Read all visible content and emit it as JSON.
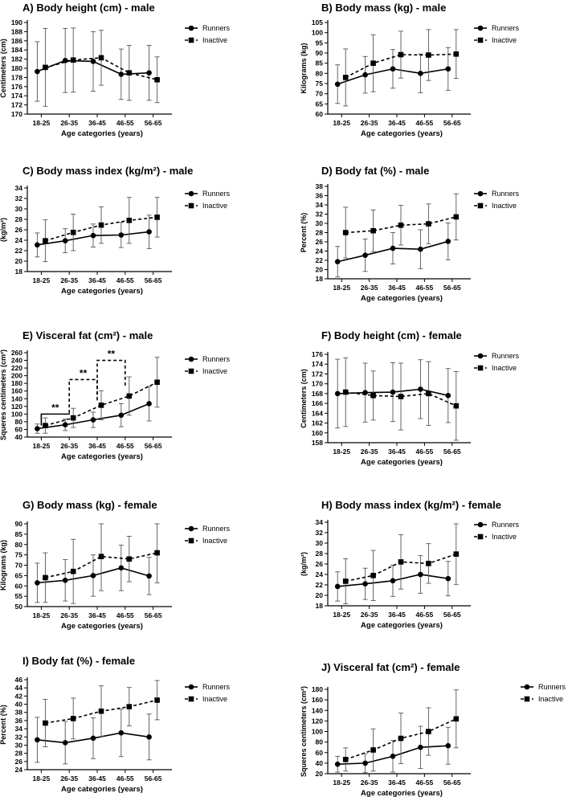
{
  "legend": {
    "runners": "Runners",
    "inactive": "Inactive"
  },
  "chart_data": [
    {
      "id": "A",
      "type": "line",
      "title": "A) Body height (cm) - male",
      "xlabel": "Age categories (years)",
      "ylabel": "Centimeters (cm)",
      "categories": [
        "18-25",
        "26-35",
        "36-45",
        "46-55",
        "56-65"
      ],
      "ylim": [
        170,
        190
      ],
      "yticks": [
        170,
        172,
        174,
        176,
        178,
        180,
        182,
        184,
        186,
        188,
        190
      ],
      "series": [
        {
          "name": "Runners",
          "values": [
            179.3,
            181.7,
            181.5,
            178.7,
            179.0
          ],
          "err": [
            6.5,
            7.0,
            6.5,
            5.5,
            6.0
          ]
        },
        {
          "name": "Inactive",
          "values": [
            180.2,
            181.8,
            182.3,
            179.0,
            177.5
          ],
          "err": [
            8.5,
            7.0,
            6.0,
            6.0,
            5.0
          ]
        }
      ]
    },
    {
      "id": "B",
      "type": "line",
      "title": "B) Body mass (kg) - male",
      "xlabel": "Age categories (years)",
      "ylabel": "Kilograms (kg)",
      "categories": [
        "18-25",
        "26-35",
        "36-45",
        "46-55",
        "56-65"
      ],
      "ylim": [
        60,
        105
      ],
      "yticks": [
        60,
        65,
        70,
        75,
        80,
        85,
        90,
        95,
        100,
        105
      ],
      "series": [
        {
          "name": "Runners",
          "values": [
            74.7,
            79.3,
            82.2,
            80.0,
            82.2
          ],
          "err": [
            9.5,
            9.0,
            9.5,
            9.5,
            10.5
          ]
        },
        {
          "name": "Inactive",
          "values": [
            78.0,
            85.0,
            89.2,
            89.0,
            89.5
          ],
          "err": [
            14.0,
            14.0,
            11.5,
            12.5,
            12.0
          ]
        }
      ]
    },
    {
      "id": "C",
      "type": "line",
      "title": "C) Body mass index (kg/m²) - male",
      "xlabel": "Age categories (years)",
      "ylabel": "(kg/m²)",
      "categories": [
        "18-25",
        "26-35",
        "36-45",
        "46-55",
        "56-65"
      ],
      "ylim": [
        18,
        34
      ],
      "yticks": [
        18,
        20,
        22,
        24,
        26,
        28,
        30,
        32,
        34
      ],
      "series": [
        {
          "name": "Runners",
          "values": [
            23.1,
            23.9,
            24.9,
            25.0,
            25.6
          ],
          "err": [
            2.3,
            2.3,
            2.2,
            2.4,
            3.2
          ]
        },
        {
          "name": "Inactive",
          "values": [
            23.9,
            25.5,
            26.9,
            27.8,
            28.4
          ],
          "err": [
            4.0,
            3.5,
            3.5,
            4.4,
            3.8
          ]
        }
      ]
    },
    {
      "id": "D",
      "type": "line",
      "title": "D) Body fat (%) - male",
      "xlabel": "Age categories (years)",
      "ylabel": "Percent (%)",
      "categories": [
        "18-25",
        "26-35",
        "36-45",
        "46-55",
        "56-65"
      ],
      "ylim": [
        18,
        38
      ],
      "yticks": [
        18,
        20,
        22,
        24,
        26,
        28,
        30,
        32,
        34,
        36,
        38
      ],
      "series": [
        {
          "name": "Runners",
          "values": [
            21.7,
            23.1,
            24.6,
            24.4,
            26.1
          ],
          "err": [
            3.3,
            3.5,
            3.4,
            4.2,
            4.0
          ]
        },
        {
          "name": "Inactive",
          "values": [
            28.0,
            28.4,
            29.6,
            29.9,
            31.4
          ],
          "err": [
            5.5,
            4.5,
            4.3,
            4.3,
            5.0
          ]
        }
      ]
    },
    {
      "id": "E",
      "type": "line",
      "title": "E) Visceral fat (cm²) - male",
      "xlabel": "Age categories (years)",
      "ylabel": "Squeres centimeters (cm²)",
      "categories": [
        "18-25",
        "26-35",
        "36-45",
        "46-55",
        "56-65"
      ],
      "ylim": [
        40,
        260
      ],
      "yticks": [
        40,
        60,
        80,
        100,
        120,
        140,
        160,
        180,
        200,
        220,
        240,
        260
      ],
      "series": [
        {
          "name": "Runners",
          "values": [
            62,
            72,
            85,
            97,
            127
          ],
          "err": [
            12,
            15,
            20,
            30,
            45
          ]
        },
        {
          "name": "Inactive",
          "values": [
            70,
            90,
            123,
            147,
            183
          ],
          "err": [
            20,
            25,
            38,
            50,
            65
          ]
        }
      ],
      "annotations": [
        {
          "label": "**",
          "from": 0,
          "to": 1,
          "y": 100,
          "style": "solid"
        },
        {
          "label": "**",
          "from": 1,
          "to": 2,
          "y": 190,
          "style": "dashed"
        },
        {
          "label": "**",
          "from": 2,
          "to": 3,
          "y": 240,
          "style": "dashed"
        }
      ]
    },
    {
      "id": "F",
      "type": "line",
      "title": "F) Body height (cm) - female",
      "xlabel": "Age categories (years)",
      "ylabel": "Centimeters (cm)",
      "categories": [
        "18-25",
        "26-35",
        "36-45",
        "46-55",
        "56-65"
      ],
      "ylim": [
        158,
        176
      ],
      "yticks": [
        158,
        160,
        162,
        164,
        166,
        168,
        170,
        172,
        174,
        176
      ],
      "series": [
        {
          "name": "Runners",
          "values": [
            168.0,
            168.2,
            168.3,
            168.9,
            167.6
          ],
          "err": [
            7.0,
            6.0,
            6.0,
            6.0,
            5.5
          ]
        },
        {
          "name": "Inactive",
          "values": [
            168.3,
            167.6,
            167.4,
            168.0,
            165.5
          ],
          "err": [
            7.0,
            5.0,
            6.8,
            6.5,
            7.0
          ]
        }
      ]
    },
    {
      "id": "G",
      "type": "line",
      "title": "G) Body mass (kg) - female",
      "xlabel": "Age categories (years)",
      "ylabel": "Kilograms (kg)",
      "categories": [
        "18-25",
        "26-35",
        "36-45",
        "46-55",
        "56-65"
      ],
      "ylim": [
        50,
        90
      ],
      "yticks": [
        50,
        55,
        60,
        65,
        70,
        75,
        80,
        85,
        90
      ],
      "series": [
        {
          "name": "Runners",
          "values": [
            61.5,
            62.7,
            65.0,
            68.7,
            64.8
          ],
          "err": [
            9.5,
            10.0,
            10.0,
            11.0,
            9.0
          ]
        },
        {
          "name": "Inactive",
          "values": [
            64.0,
            67.0,
            74.2,
            73.0,
            76.0
          ],
          "err": [
            12.0,
            15.5,
            16.5,
            11.0,
            14.5
          ]
        }
      ]
    },
    {
      "id": "H",
      "type": "line",
      "title": "H) Body mass index (kg/m²) - female",
      "xlabel": "Age categories (years)",
      "ylabel": "(kg/m²)",
      "categories": [
        "18-25",
        "26-35",
        "36-45",
        "46-55",
        "56-65"
      ],
      "ylim": [
        18,
        34
      ],
      "yticks": [
        18,
        20,
        22,
        24,
        26,
        28,
        30,
        32,
        34
      ],
      "series": [
        {
          "name": "Runners",
          "values": [
            21.7,
            22.2,
            22.8,
            24.0,
            23.2
          ],
          "err": [
            2.8,
            3.0,
            3.0,
            3.6,
            3.3
          ]
        },
        {
          "name": "Inactive",
          "values": [
            22.7,
            23.8,
            26.4,
            26.1,
            27.9
          ],
          "err": [
            4.3,
            4.8,
            5.2,
            3.8,
            5.8
          ]
        }
      ]
    },
    {
      "id": "I",
      "type": "line",
      "title": "I) Body fat (%) - female",
      "xlabel": "Age categories (years)",
      "ylabel": "Percent (%)",
      "categories": [
        "18-25",
        "26-35",
        "36-45",
        "46-55",
        "56-65"
      ],
      "ylim": [
        24,
        46
      ],
      "yticks": [
        24,
        26,
        28,
        30,
        32,
        34,
        36,
        38,
        40,
        42,
        44,
        46
      ],
      "series": [
        {
          "name": "Runners",
          "values": [
            31.3,
            30.6,
            31.7,
            33.0,
            32.0
          ],
          "err": [
            5.5,
            5.2,
            5.0,
            5.8,
            5.6
          ]
        },
        {
          "name": "Inactive",
          "values": [
            35.4,
            36.5,
            38.3,
            39.4,
            41.0
          ],
          "err": [
            5.8,
            5.0,
            6.2,
            4.7,
            4.8
          ]
        }
      ]
    },
    {
      "id": "J",
      "type": "line",
      "title": "J) Visceral fat (cm²) - female",
      "xlabel": "Age categories (years)",
      "ylabel": "Squeres centimeters (cm²)",
      "categories": [
        "18-25",
        "26-35",
        "36-45",
        "46-55",
        "56-65"
      ],
      "ylim": [
        20,
        180
      ],
      "yticks": [
        20,
        40,
        60,
        80,
        100,
        120,
        140,
        160,
        180
      ],
      "series": [
        {
          "name": "Runners",
          "values": [
            38,
            40,
            53,
            70,
            73
          ],
          "err": [
            15,
            18,
            30,
            40,
            35
          ]
        },
        {
          "name": "Inactive",
          "values": [
            47,
            65,
            87,
            100,
            124
          ],
          "err": [
            22,
            40,
            48,
            45,
            55
          ]
        }
      ]
    }
  ]
}
